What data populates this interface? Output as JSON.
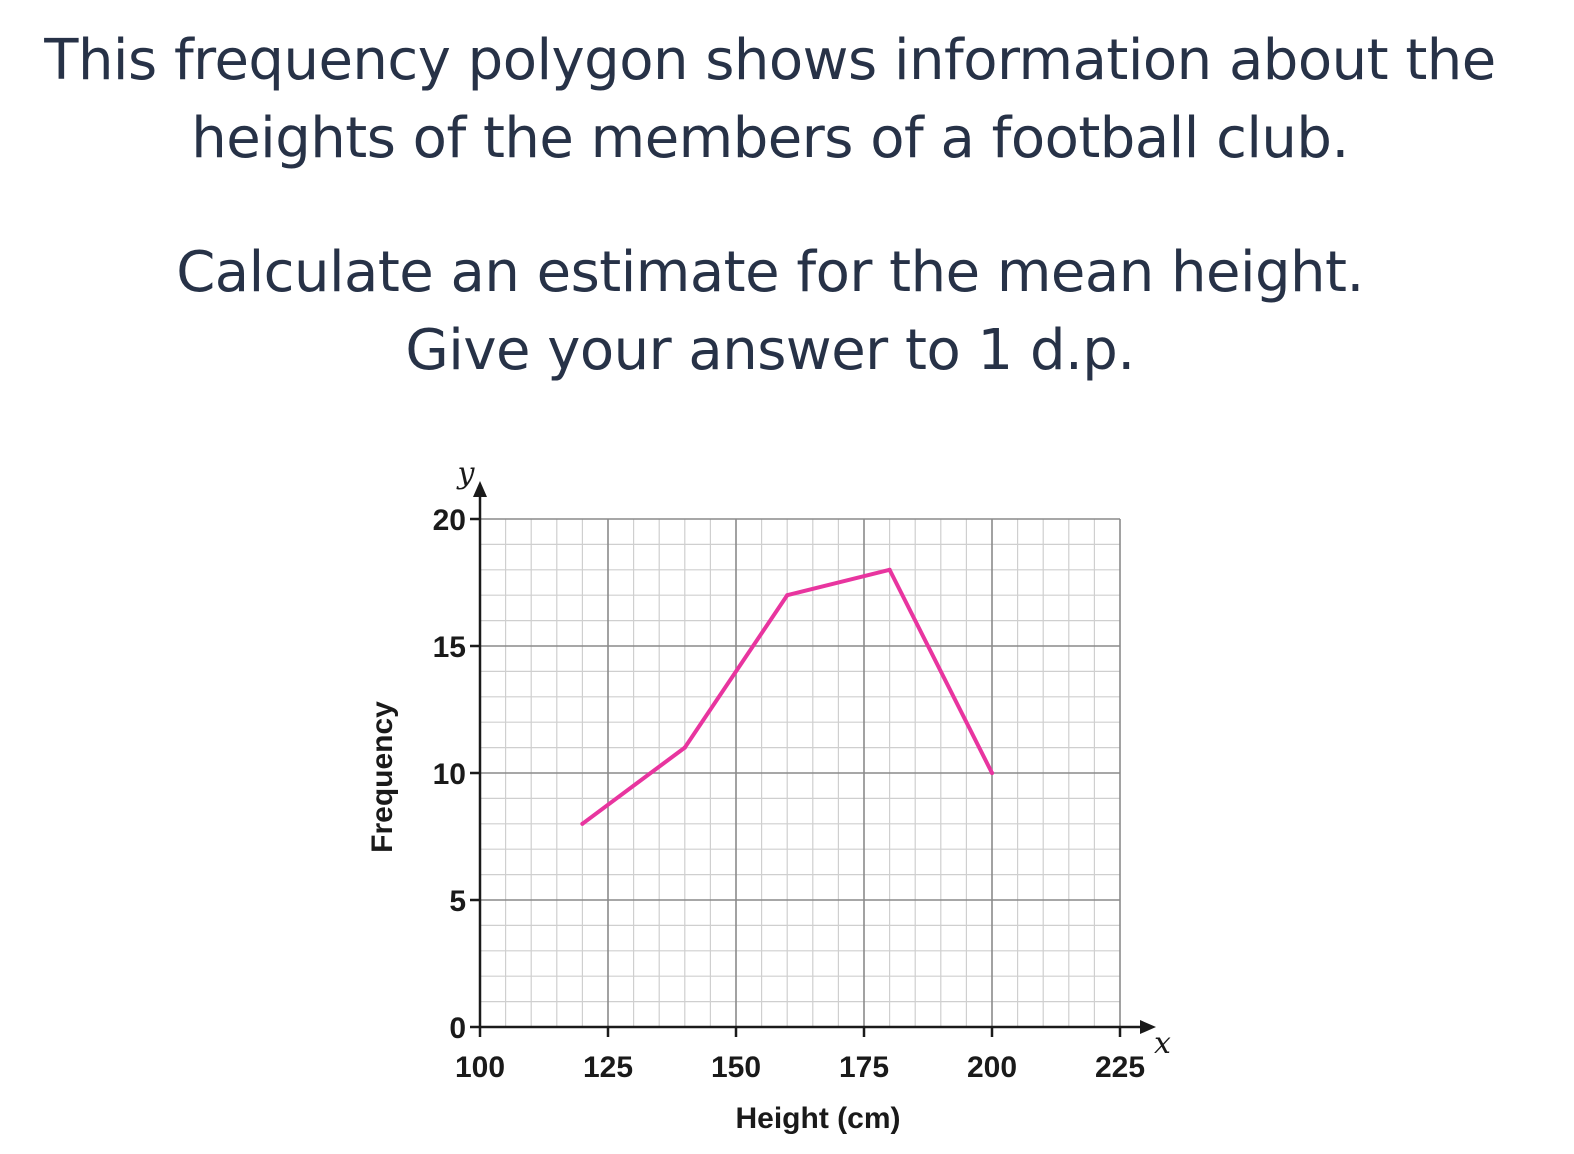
{
  "question": {
    "line1": "This frequency polygon shows information about the",
    "line2": "heights of the members of a football club.",
    "line3": "Calculate an estimate for the mean height.",
    "line4": "Give your answer to 1 d.p."
  },
  "chart_data": {
    "type": "line",
    "title": "",
    "xlabel": "Height (cm)",
    "ylabel": "Frequency",
    "x_axis_var": "x",
    "y_axis_var": "y",
    "xlim": [
      100,
      225
    ],
    "ylim": [
      0,
      20
    ],
    "x_ticks": [
      100,
      125,
      150,
      175,
      200,
      225
    ],
    "y_ticks": [
      0,
      5,
      10,
      15,
      20
    ],
    "x_minor_step": 5,
    "y_minor_step": 1,
    "grid": true,
    "series": [
      {
        "x": [
          120,
          140,
          160,
          180,
          200
        ],
        "y": [
          8,
          11,
          17,
          18,
          10
        ]
      }
    ],
    "colors": {
      "line": "#e8359f",
      "grid_major": "#8a8a8a",
      "grid_minor": "#cfcfcf",
      "axis": "#1a1a1a"
    }
  }
}
